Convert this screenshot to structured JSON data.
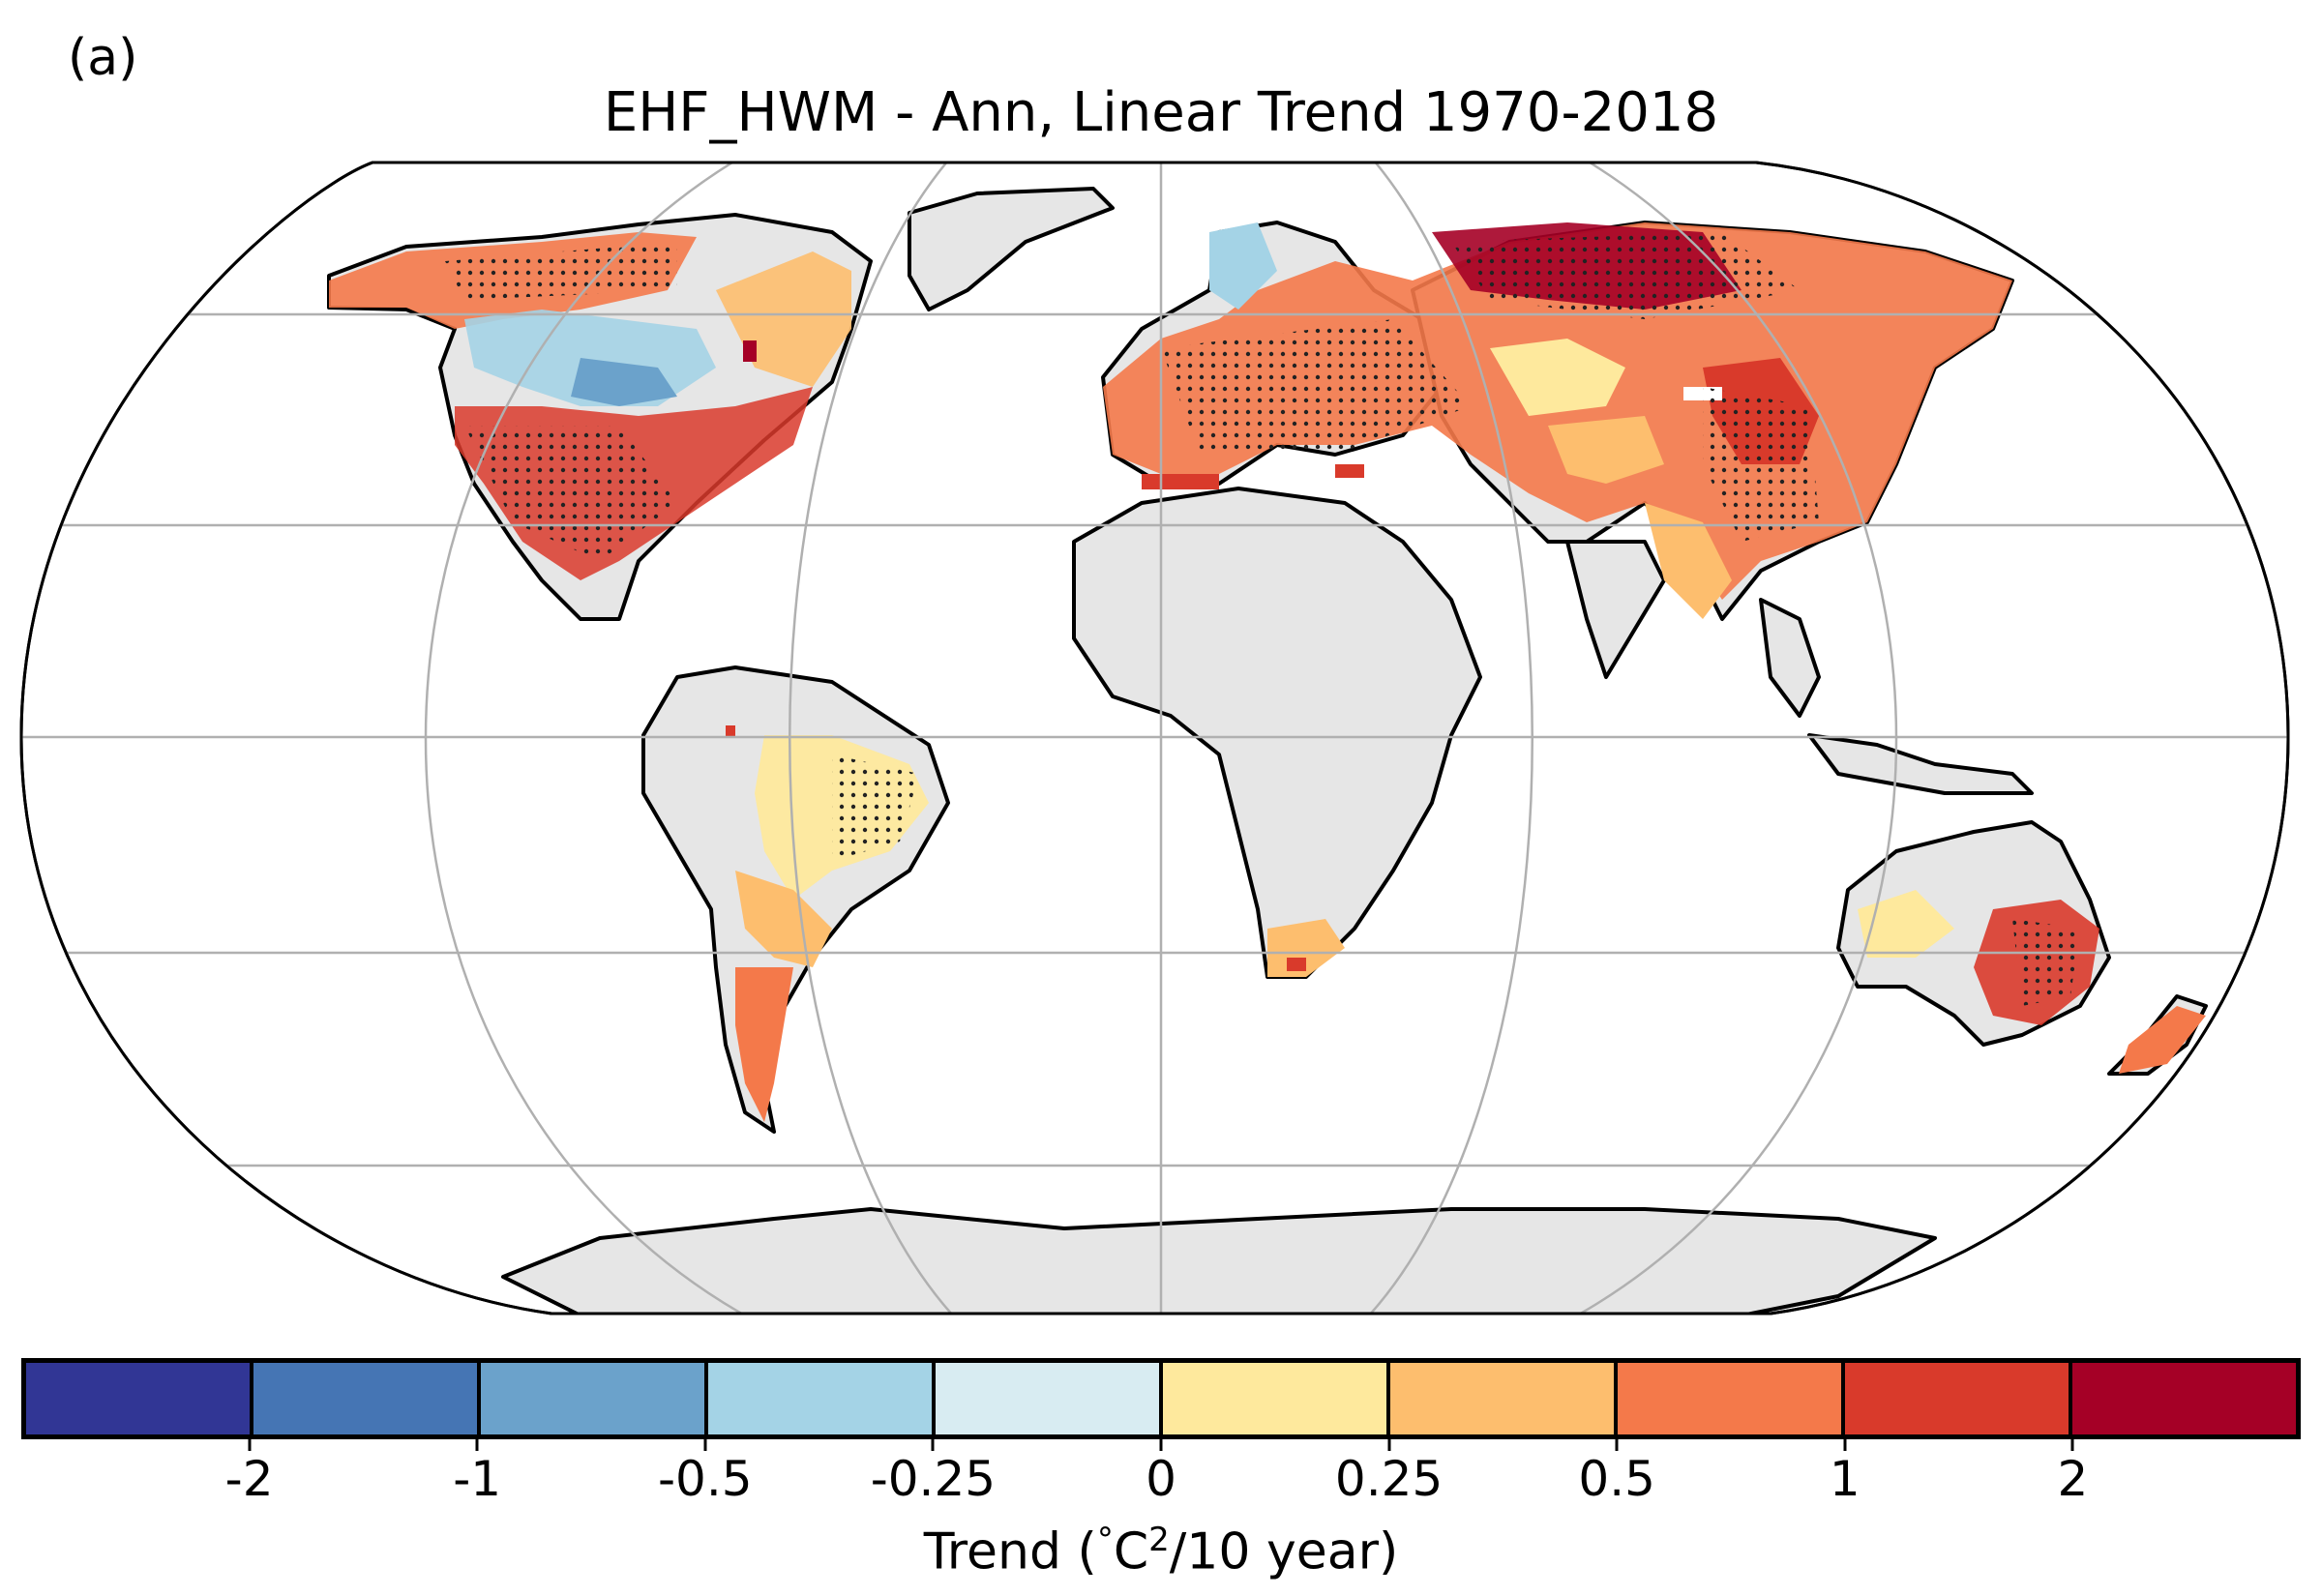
{
  "panel_label": "(a)",
  "title": "EHF_HWM - Ann, Linear Trend 1970-2018",
  "colorbar": {
    "colors": [
      "#313695",
      "#4575b4",
      "#6ba2cb",
      "#a4d3e6",
      "#d8ecf2",
      "#fee99d",
      "#fdbe6e",
      "#f4794a",
      "#d93a2b",
      "#a50026"
    ],
    "ticks": [
      "-2",
      "-1",
      "-0.5",
      "-0.25",
      "0",
      "0.25",
      "0.5",
      "1",
      "2"
    ],
    "label_prefix": "Trend (",
    "label_deg": "°",
    "label_unit": "C",
    "label_sup": "2",
    "label_suffix": "/10 year)"
  },
  "map": {
    "projection": "Robinson",
    "ocean_color": "#ffffff",
    "no_data_color": "#e6e6e6",
    "graticule_color": "#b0b0b0",
    "coastline_color": "#000000",
    "stippling": "significant trends"
  }
}
